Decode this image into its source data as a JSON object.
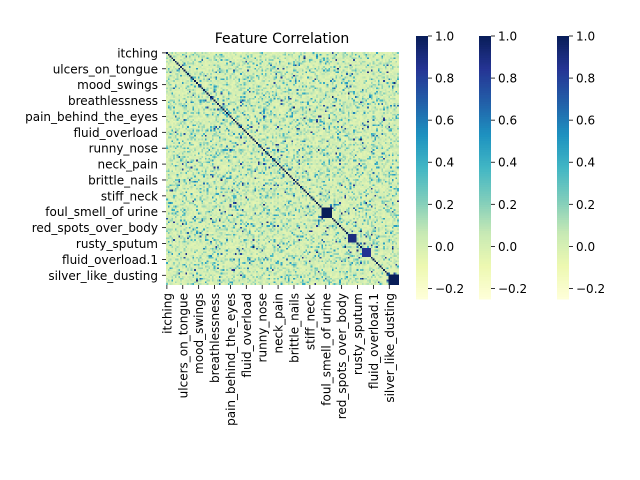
{
  "chart_data": {
    "type": "heatmap",
    "title": "Feature Correlation",
    "xlabel": "",
    "ylabel": "",
    "colormap": "YlGnBu",
    "color_range": [
      -0.25,
      1.0
    ],
    "tick_labels": [
      "itching",
      "ulcers_on_tongue",
      "mood_swings",
      "breathlessness",
      "pain_behind_the_eyes",
      "fluid_overload",
      "runny_nose",
      "neck_pain",
      "brittle_nails",
      "stiff_neck",
      "foul_smell_of urine",
      "red_spots_over_body",
      "rusty_sputum",
      "fluid_overload.1",
      "silver_like_dusting"
    ],
    "matrix_size": 132,
    "tick_every": 9,
    "diagonal_value": 1.0,
    "strong_blocks": [
      {
        "start": 88,
        "end": 93,
        "value": 1.0
      },
      {
        "start": 103,
        "end": 107,
        "value": 0.9
      },
      {
        "start": 111,
        "end": 115,
        "value": 0.85
      },
      {
        "start": 126,
        "end": 131,
        "value": 1.0
      }
    ],
    "colorbars": [
      {
        "ticks": [
          1.0,
          0.8,
          0.6,
          0.4,
          0.2,
          0.0,
          -0.2
        ],
        "tick_labels": [
          "1.0",
          "0.8",
          "0.6",
          "0.4",
          "0.2",
          "0.0",
          "−0.2"
        ]
      },
      {
        "ticks": [
          1.0,
          0.8,
          0.6,
          0.4,
          0.2,
          0.0,
          -0.2
        ],
        "tick_labels": [
          "1.0",
          "0.8",
          "0.6",
          "0.4",
          "0.2",
          "0.0",
          "−0.2"
        ]
      },
      {
        "ticks": [
          1.0,
          0.8,
          0.6,
          0.4,
          0.2,
          0.0,
          -0.2
        ],
        "tick_labels": [
          "1.0",
          "0.8",
          "0.6",
          "0.4",
          "0.2",
          "0.0",
          "−0.2"
        ]
      }
    ],
    "grid": false
  }
}
